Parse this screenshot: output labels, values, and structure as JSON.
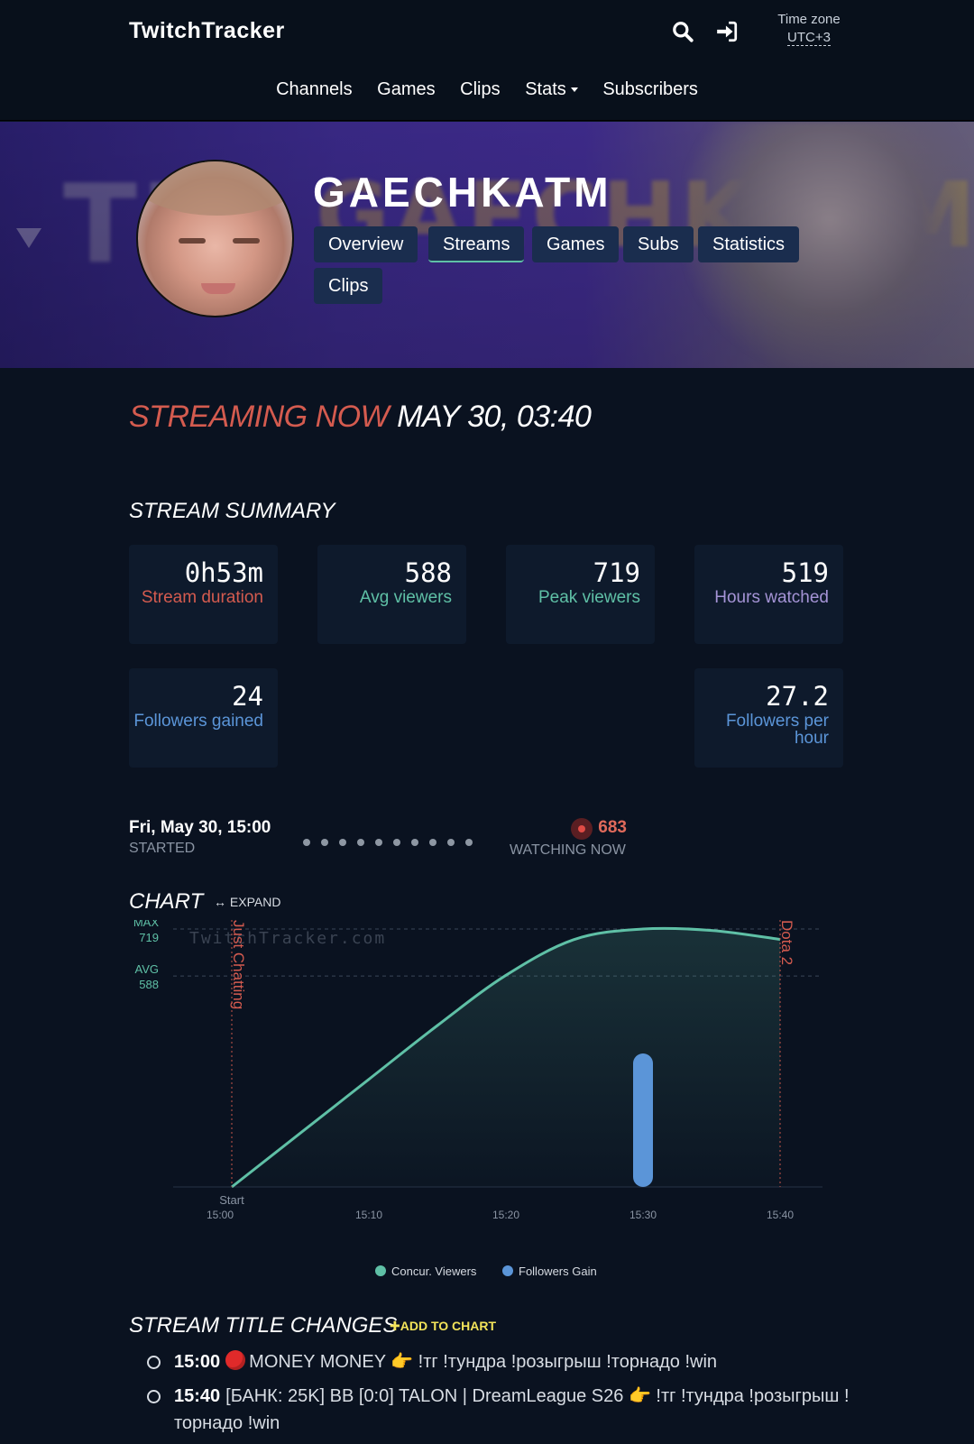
{
  "nav": {
    "brand": "TwitchTracker",
    "timezone_label": "Time zone",
    "timezone_value": "UTC+3",
    "menu": [
      "Channels",
      "Games",
      "Clips",
      "Stats",
      "Subscribers"
    ]
  },
  "channel": {
    "name": "GAECHKATM",
    "tabs": [
      "Overview",
      "Streams",
      "Games",
      "Subs",
      "Statistics",
      "Clips"
    ],
    "active_tab": "Streams"
  },
  "status": {
    "live_text": "STREAMING NOW",
    "date_text": "MAY 30, 03:40"
  },
  "summary": {
    "heading": "STREAM SUMMARY",
    "cards": [
      {
        "value": "0h53m",
        "label": "Stream duration",
        "color": "#d45b4f"
      },
      {
        "value": "588",
        "label": "Avg viewers",
        "color": "#5fc0a6"
      },
      {
        "value": "719",
        "label": "Peak viewers",
        "color": "#5fc0a6"
      },
      {
        "value": "519",
        "label": "Hours watched",
        "color": "#a594d6"
      },
      {
        "value": "24",
        "label": "Followers gained",
        "color": "#5b95d8"
      },
      {
        "value": "27.2",
        "label": "Followers per hour",
        "color": "#5b95d8"
      }
    ]
  },
  "timeline": {
    "started_time": "Fri, May 30, 15:00",
    "started_label": "STARTED",
    "watching_count": "683",
    "watching_label": "WATCHING NOW"
  },
  "chart_section": {
    "heading": "CHART",
    "expand_label": "EXPAND",
    "watermark": "TwitchTracker.com",
    "max_label": "MAX",
    "avg_label": "AVG",
    "start_label": "Start"
  },
  "chart_data": {
    "type": "line",
    "x": [
      "15:00",
      "15:05",
      "15:10",
      "15:15",
      "15:20",
      "15:25",
      "15:30",
      "15:35",
      "15:40"
    ],
    "series": [
      {
        "name": "Concur. Viewers",
        "color": "#5fc0a6",
        "values": [
          0,
          150,
          300,
          450,
          590,
          690,
          719,
          715,
          690
        ]
      },
      {
        "name": "Followers Gain",
        "color": "#5b95d8",
        "values": [
          null,
          null,
          null,
          null,
          null,
          null,
          24,
          null,
          null
        ]
      }
    ],
    "x_ticks": [
      "15:00",
      "15:10",
      "15:20",
      "15:30",
      "15:40"
    ],
    "max_value": 719,
    "avg_value": 588,
    "ylim": [
      0,
      719
    ],
    "annotations": [
      {
        "label": "Just Chatting",
        "x": "15:00"
      },
      {
        "label": "Dota 2",
        "x": "15:40"
      }
    ]
  },
  "title_changes": {
    "heading": "STREAM TITLE CHANGES",
    "add_label": "ADD TO CHART",
    "items": [
      {
        "time": "15:00",
        "text": "MONEY MONEY 👉 !тг !тундра !розыгрыш !торнадо !win"
      },
      {
        "time": "15:40",
        "text": "[БАНК: 25K] BB [0:0] TALON | DreamLeague S26 👉 !тг !тундра !розыгрыш !торнадо !win"
      }
    ]
  }
}
